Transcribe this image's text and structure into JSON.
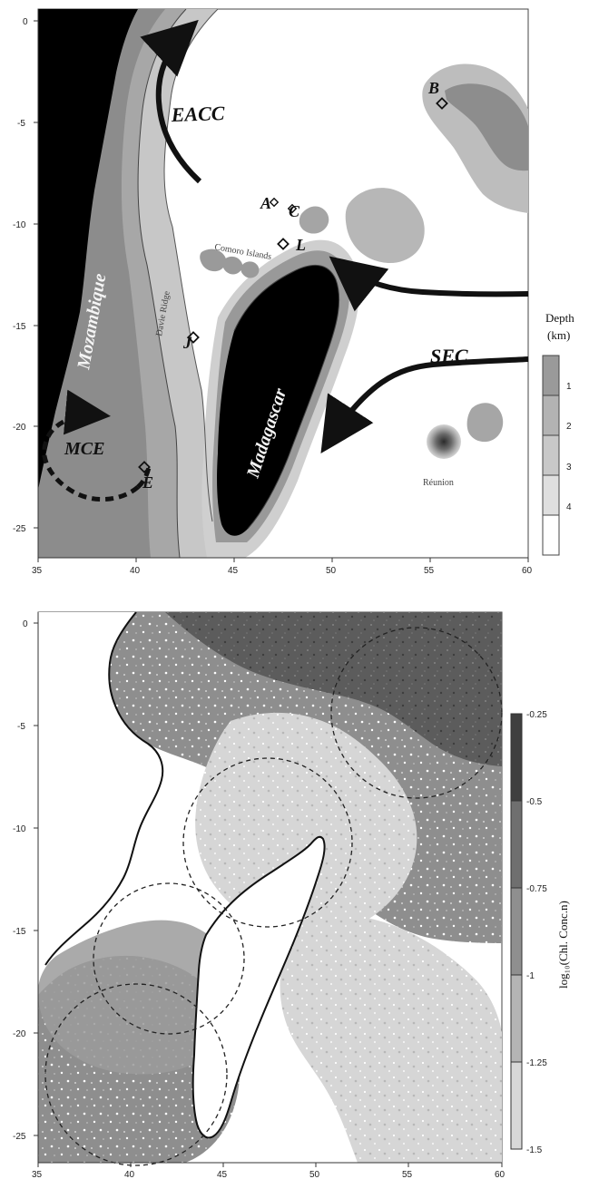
{
  "panels": {
    "depth_map": {
      "x_ticks": [
        "35",
        "40",
        "45",
        "50",
        "55",
        "60"
      ],
      "y_ticks": [
        "0",
        "-5",
        "-10",
        "-15",
        "-20",
        "-25"
      ],
      "labels": {
        "eacc": "EACC",
        "mozambique": "Mozambique",
        "madagascar": "Madagascar",
        "sec": "SEC",
        "mce": "MCE",
        "comoro": "Comoro Islands",
        "davie": "Davie Ridge",
        "reunion": "Réunion"
      },
      "site_labels": [
        "A",
        "B",
        "C",
        "E",
        "J",
        "L"
      ],
      "colorbar": {
        "title_line1": "Depth",
        "title_line2": "(km)",
        "tick_labels": [
          "1",
          "2",
          "3",
          "4"
        ],
        "colors": [
          "#9a9a9a",
          "#b3b3b3",
          "#c8c8c8",
          "#dfdfdf",
          "#ffffff"
        ]
      }
    },
    "chlorophyll_map": {
      "x_ticks": [
        "35",
        "40",
        "45",
        "50",
        "55",
        "60"
      ],
      "y_ticks": [
        "0",
        "-5",
        "-10",
        "-15",
        "-20",
        "-25"
      ],
      "colorbar": {
        "label": "log₁₀(Chl. Conc.n)",
        "tick_labels": [
          "-0.25",
          "-0.5",
          "-0.75",
          "-1",
          "-1.25",
          "-1.5"
        ],
        "colors": [
          "#3f3f3f",
          "#6f6f6f",
          "#8f8f8f",
          "#b4b4b4",
          "#d8d8d8"
        ]
      }
    }
  }
}
